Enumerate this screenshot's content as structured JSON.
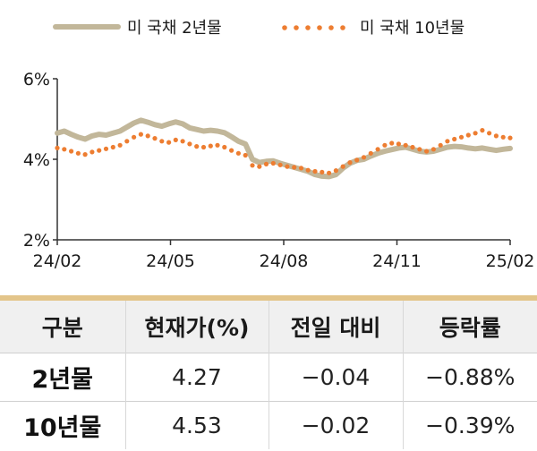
{
  "chart_data": {
    "type": "line",
    "x_ticks": [
      "24/02",
      "24/05",
      "24/08",
      "24/11",
      "25/02"
    ],
    "y_ticks": [
      "2%",
      "4%",
      "6%"
    ],
    "ylim": [
      2,
      6
    ],
    "series": [
      {
        "name": "미 국채 2년물",
        "style": "solid",
        "color": "#c2b79a",
        "values": [
          4.65,
          4.7,
          4.62,
          4.55,
          4.5,
          4.58,
          4.62,
          4.6,
          4.65,
          4.7,
          4.8,
          4.9,
          4.97,
          4.92,
          4.86,
          4.82,
          4.88,
          4.93,
          4.88,
          4.78,
          4.74,
          4.7,
          4.72,
          4.7,
          4.66,
          4.56,
          4.45,
          4.38,
          4.0,
          3.92,
          3.95,
          3.96,
          3.9,
          3.85,
          3.8,
          3.75,
          3.7,
          3.62,
          3.58,
          3.57,
          3.62,
          3.78,
          3.9,
          3.97,
          4.0,
          4.08,
          4.15,
          4.2,
          4.24,
          4.28,
          4.3,
          4.25,
          4.2,
          4.18,
          4.2,
          4.25,
          4.3,
          4.32,
          4.31,
          4.28,
          4.26,
          4.28,
          4.25,
          4.22,
          4.25,
          4.27
        ]
      },
      {
        "name": "미 국채 10년물",
        "style": "dotted",
        "color": "#ed7d31",
        "values": [
          4.28,
          4.25,
          4.2,
          4.15,
          4.12,
          4.18,
          4.22,
          4.26,
          4.3,
          4.35,
          4.45,
          4.55,
          4.62,
          4.58,
          4.52,
          4.45,
          4.42,
          4.48,
          4.45,
          4.38,
          4.32,
          4.3,
          4.33,
          4.35,
          4.3,
          4.22,
          4.15,
          4.1,
          3.85,
          3.82,
          3.88,
          3.9,
          3.86,
          3.82,
          3.8,
          3.78,
          3.73,
          3.7,
          3.68,
          3.66,
          3.72,
          3.82,
          3.92,
          3.98,
          4.05,
          4.15,
          4.25,
          4.35,
          4.4,
          4.38,
          4.35,
          4.3,
          4.25,
          4.2,
          4.25,
          4.35,
          4.45,
          4.5,
          4.55,
          4.6,
          4.65,
          4.72,
          4.65,
          4.58,
          4.55,
          4.53
        ]
      }
    ]
  },
  "table": {
    "headers": [
      "구분",
      "현재가(%)",
      "전일 대비",
      "등락률"
    ],
    "rows": [
      {
        "label": "2년물",
        "price": "4.27",
        "change": "−0.04",
        "rate": "−0.88%"
      },
      {
        "label": "10년물",
        "price": "4.53",
        "change": "−0.02",
        "rate": "−0.39%"
      }
    ]
  }
}
